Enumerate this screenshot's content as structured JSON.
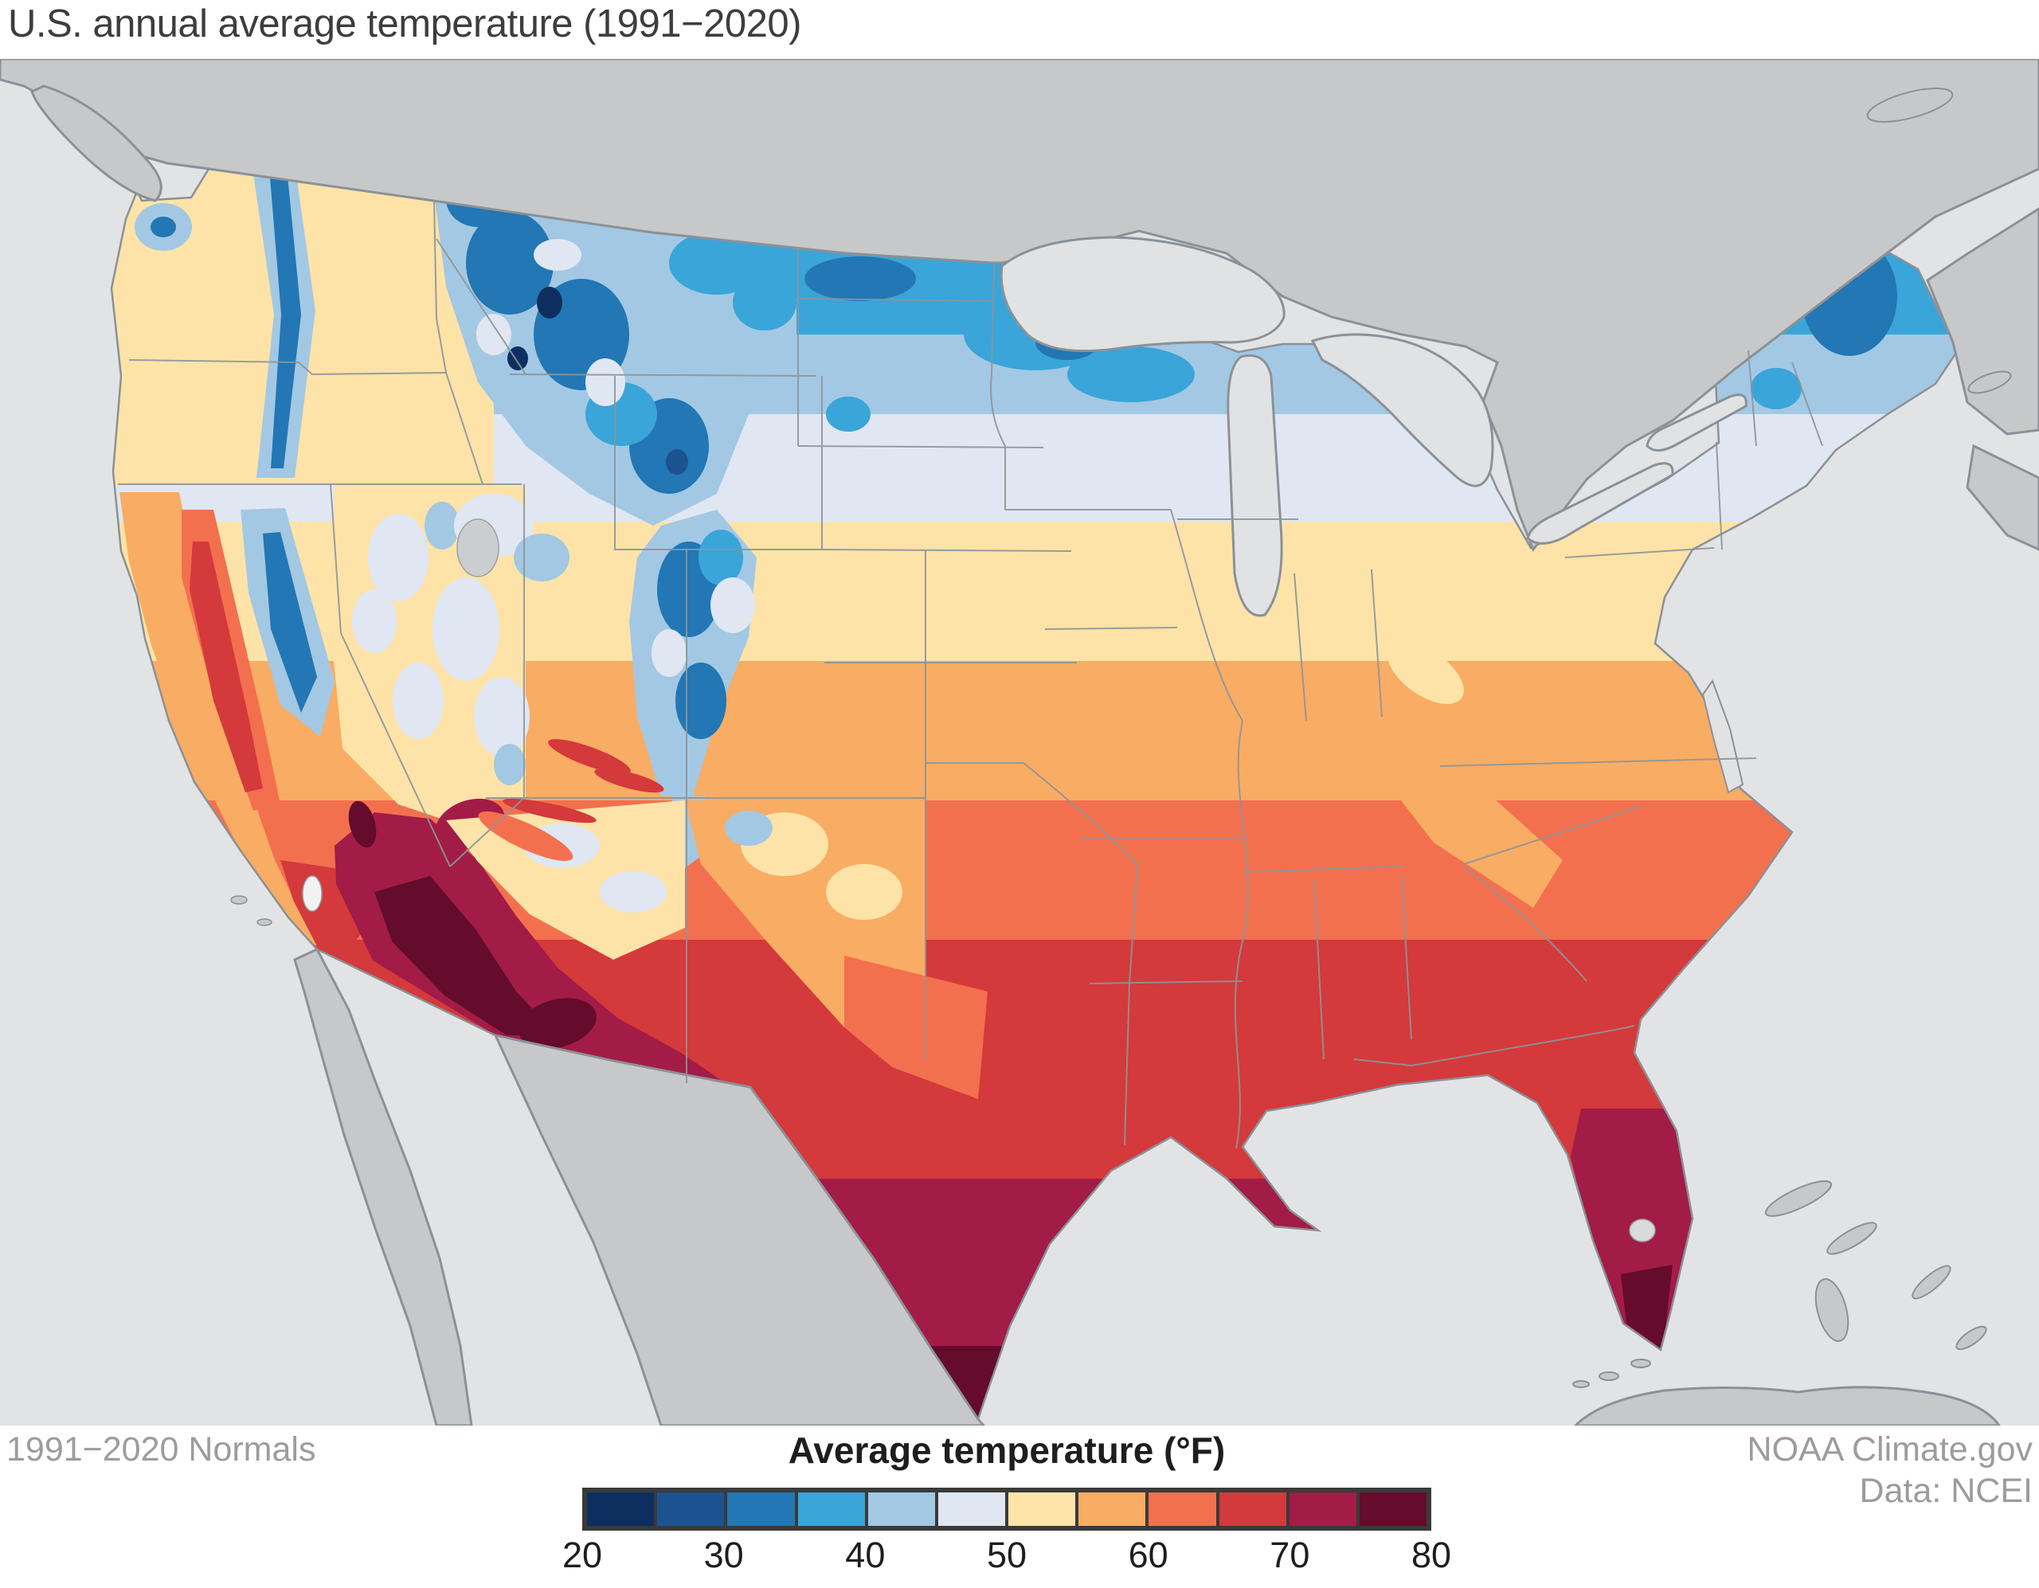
{
  "page": {
    "title": "U.S. annual average temperature (1991−2020)"
  },
  "legend": {
    "title": "Average temperature (°F)",
    "unit": "°F",
    "min": 20,
    "max": 80,
    "step_per_swatch": 5,
    "tick_labels": [
      "20",
      "30",
      "40",
      "50",
      "60",
      "70",
      "80"
    ],
    "colors": [
      "#0d2f60",
      "#1d5290",
      "#2277b4",
      "#3aa5d9",
      "#a3c8e3",
      "#e0e7f2",
      "#fde3a8",
      "#f9ac63",
      "#f3704f",
      "#d4393b",
      "#a21c47",
      "#650b2c"
    ],
    "frame_color": "#3a3a3a"
  },
  "footer": {
    "normals_caption": "1991−2020 Normals",
    "credit_line1": "NOAA Climate.gov",
    "credit_line2": "Data: NCEI"
  },
  "map": {
    "ocean_color": "#e2e3e4",
    "foreign_land_color": "#c7c8ca",
    "boundary_color": "#8b9196",
    "region": "Contiguous United States with southern Canada, northern Mexico, Bahamas and Cuba",
    "coldest_areas": "Northern Rockies, northern Minnesota/North Dakota border, northern Maine",
    "warmest_areas": "Desert Southwest (southern Arizona), south Texas, south Florida"
  }
}
